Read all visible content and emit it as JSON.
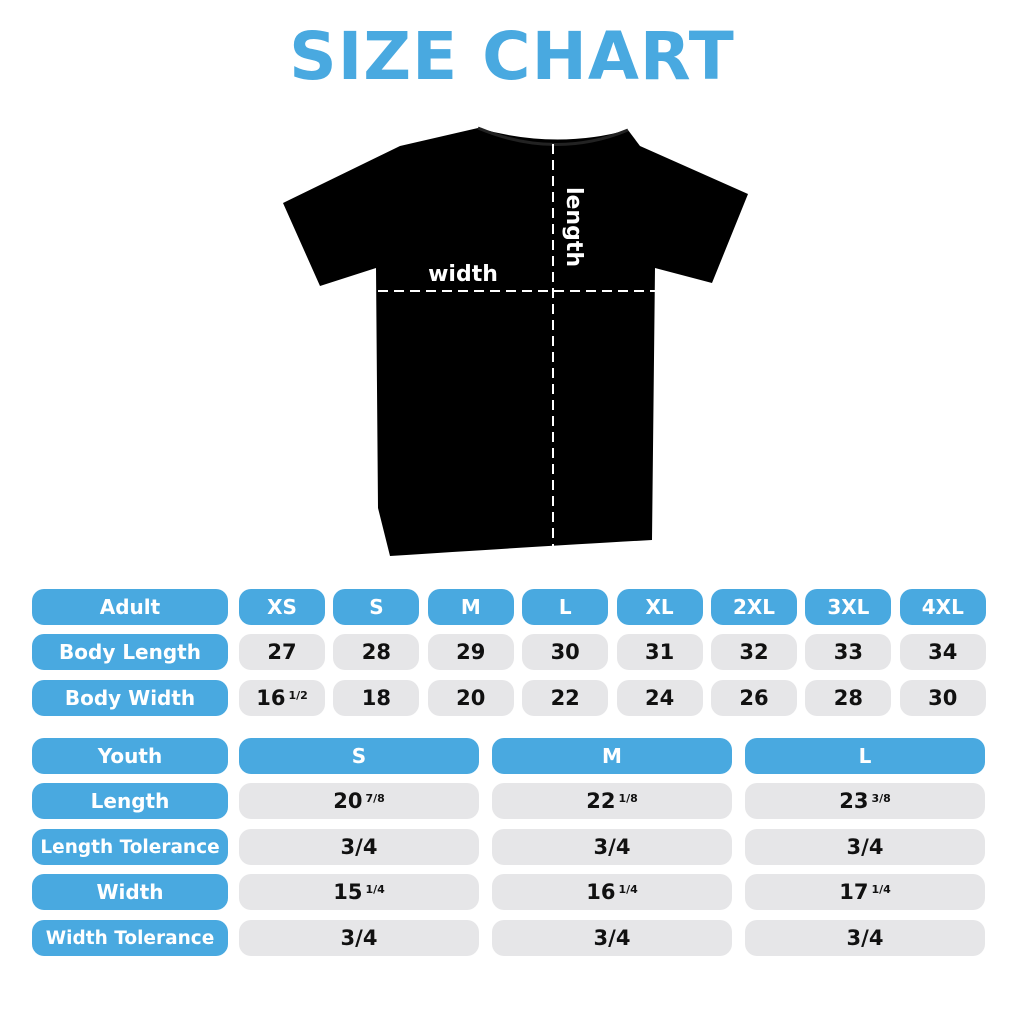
{
  "title": "SIZE CHART",
  "shirt": {
    "width_label": "width",
    "length_label": "length",
    "shirt_color": "#000000"
  },
  "accent_color": "#49a9e0",
  "adult": {
    "header": "Adult",
    "sizes": [
      "XS",
      "S",
      "M",
      "L",
      "XL",
      "2XL",
      "3XL",
      "4XL"
    ],
    "rows": [
      {
        "label": "Body Length",
        "values": [
          {
            "whole": "27",
            "frac": ""
          },
          {
            "whole": "28",
            "frac": ""
          },
          {
            "whole": "29",
            "frac": ""
          },
          {
            "whole": "30",
            "frac": ""
          },
          {
            "whole": "31",
            "frac": ""
          },
          {
            "whole": "32",
            "frac": ""
          },
          {
            "whole": "33",
            "frac": ""
          },
          {
            "whole": "34",
            "frac": ""
          }
        ]
      },
      {
        "label": "Body Width",
        "values": [
          {
            "whole": "16",
            "frac": "1/2"
          },
          {
            "whole": "18",
            "frac": ""
          },
          {
            "whole": "20",
            "frac": ""
          },
          {
            "whole": "22",
            "frac": ""
          },
          {
            "whole": "24",
            "frac": ""
          },
          {
            "whole": "26",
            "frac": ""
          },
          {
            "whole": "28",
            "frac": ""
          },
          {
            "whole": "30",
            "frac": ""
          }
        ]
      }
    ]
  },
  "youth": {
    "header": "Youth",
    "sizes": [
      "S",
      "M",
      "L"
    ],
    "rows": [
      {
        "label": "Length",
        "values": [
          {
            "whole": "20",
            "frac": "7/8"
          },
          {
            "whole": "22",
            "frac": "1/8"
          },
          {
            "whole": "23",
            "frac": "3/8"
          }
        ]
      },
      {
        "label": "Length Tolerance",
        "values": [
          {
            "whole": "3/4",
            "frac": ""
          },
          {
            "whole": "3/4",
            "frac": ""
          },
          {
            "whole": "3/4",
            "frac": ""
          }
        ]
      },
      {
        "label": "Width",
        "values": [
          {
            "whole": "15",
            "frac": "1/4"
          },
          {
            "whole": "16",
            "frac": "1/4"
          },
          {
            "whole": "17",
            "frac": "1/4"
          }
        ]
      },
      {
        "label": "Width Tolerance",
        "values": [
          {
            "whole": "3/4",
            "frac": ""
          },
          {
            "whole": "3/4",
            "frac": ""
          },
          {
            "whole": "3/4",
            "frac": ""
          }
        ]
      }
    ]
  }
}
